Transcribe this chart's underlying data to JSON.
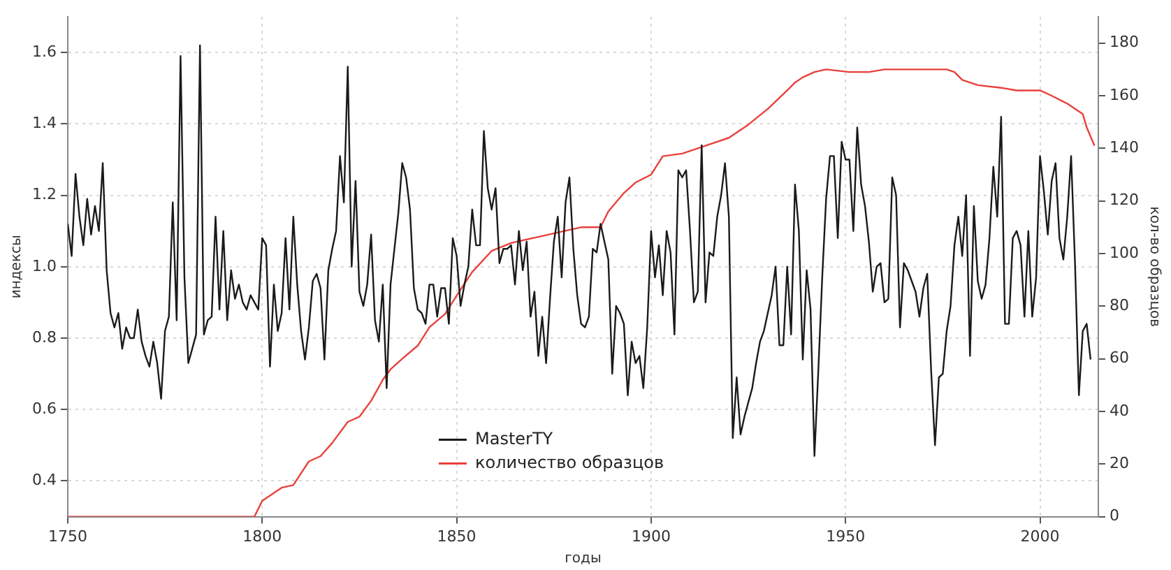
{
  "chart_data": {
    "type": "line",
    "xlabel": "годы",
    "ylabel": "индексы",
    "y2label": "кол-во образцов",
    "xlim": [
      1750,
      2015
    ],
    "xticks": [
      1750,
      1800,
      1850,
      1900,
      1950,
      2000
    ],
    "ylim": [
      0.3,
      1.7
    ],
    "yticks": [
      {
        "value": 0.4,
        "label": "0.4"
      },
      {
        "value": 0.6,
        "label": "0.6"
      },
      {
        "value": 0.8,
        "label": "0.8"
      },
      {
        "value": 1.0,
        "label": "1.0"
      },
      {
        "value": 1.2,
        "label": "1.2"
      },
      {
        "value": 1.4,
        "label": "1.4"
      },
      {
        "value": 1.6,
        "label": "1.6"
      }
    ],
    "y2lim": [
      0,
      190
    ],
    "y2ticks": [
      0,
      20,
      40,
      60,
      80,
      100,
      120,
      140,
      160,
      180
    ],
    "grid": true,
    "legend": "bottom",
    "marker": "none",
    "line_style": "solid",
    "series": [
      {
        "name": "MasterTY",
        "color": "#1a1a1a",
        "x": [
          1750,
          1751,
          1752,
          1753,
          1754,
          1755,
          1756,
          1757,
          1758,
          1759,
          1760,
          1761,
          1762,
          1763,
          1764,
          1765,
          1766,
          1767,
          1768,
          1769,
          1770,
          1771,
          1772,
          1773,
          1774,
          1775,
          1776,
          1777,
          1778,
          1779,
          1780,
          1781,
          1782,
          1783,
          1784,
          1785,
          1786,
          1787,
          1788,
          1789,
          1790,
          1791,
          1792,
          1793,
          1794,
          1795,
          1796,
          1797,
          1798,
          1799,
          1800,
          1801,
          1802,
          1803,
          1804,
          1805,
          1806,
          1807,
          1808,
          1809,
          1810,
          1811,
          1812,
          1813,
          1814,
          1815,
          1816,
          1817,
          1818,
          1819,
          1820,
          1821,
          1822,
          1823,
          1824,
          1825,
          1826,
          1827,
          1828,
          1829,
          1830,
          1831,
          1832,
          1833,
          1834,
          1835,
          1836,
          1837,
          1838,
          1839,
          1840,
          1841,
          1842,
          1843,
          1844,
          1845,
          1846,
          1847,
          1848,
          1849,
          1850,
          1851,
          1852,
          1853,
          1854,
          1855,
          1856,
          1857,
          1858,
          1859,
          1860,
          1861,
          1862,
          1863,
          1864,
          1865,
          1866,
          1867,
          1868,
          1869,
          1870,
          1871,
          1872,
          1873,
          1874,
          1875,
          1876,
          1877,
          1878,
          1879,
          1880,
          1881,
          1882,
          1883,
          1884,
          1885,
          1886,
          1887,
          1888,
          1889,
          1890,
          1891,
          1892,
          1893,
          1894,
          1895,
          1896,
          1897,
          1898,
          1899,
          1900,
          1901,
          1902,
          1903,
          1904,
          1905,
          1906,
          1907,
          1908,
          1909,
          1910,
          1911,
          1912,
          1913,
          1914,
          1915,
          1916,
          1917,
          1918,
          1919,
          1920,
          1921,
          1922,
          1923,
          1924,
          1925,
          1926,
          1927,
          1928,
          1929,
          1930,
          1931,
          1932,
          1933,
          1934,
          1935,
          1936,
          1937,
          1938,
          1939,
          1940,
          1941,
          1942,
          1943,
          1944,
          1945,
          1946,
          1947,
          1948,
          1949,
          1950,
          1951,
          1952,
          1953,
          1954,
          1955,
          1956,
          1957,
          1958,
          1959,
          1960,
          1961,
          1962,
          1963,
          1964,
          1965,
          1966,
          1967,
          1968,
          1969,
          1970,
          1971,
          1972,
          1973,
          1974,
          1975,
          1976,
          1977,
          1978,
          1979,
          1980,
          1981,
          1982,
          1983,
          1984,
          1985,
          1986,
          1987,
          1988,
          1989,
          1990,
          1991,
          1992,
          1993,
          1994,
          1995,
          1996,
          1997,
          1998,
          1999,
          2000,
          2001,
          2002,
          2003,
          2004,
          2005,
          2006,
          2007,
          2008,
          2009,
          2010,
          2011,
          2012,
          2013
        ],
        "values": [
          1.12,
          1.03,
          1.26,
          1.14,
          1.06,
          1.19,
          1.09,
          1.17,
          1.1,
          1.29,
          0.99,
          0.87,
          0.83,
          0.87,
          0.77,
          0.83,
          0.8,
          0.8,
          0.88,
          0.79,
          0.75,
          0.72,
          0.79,
          0.73,
          0.63,
          0.82,
          0.86,
          1.18,
          0.85,
          1.59,
          0.97,
          0.73,
          0.77,
          0.81,
          1.62,
          0.81,
          0.85,
          0.86,
          1.14,
          0.88,
          1.1,
          0.85,
          0.99,
          0.91,
          0.95,
          0.9,
          0.88,
          0.92,
          0.9,
          0.88,
          1.08,
          1.06,
          0.72,
          0.95,
          0.82,
          0.87,
          1.08,
          0.88,
          1.14,
          0.95,
          0.82,
          0.74,
          0.83,
          0.96,
          0.98,
          0.94,
          0.74,
          0.99,
          1.05,
          1.1,
          1.31,
          1.18,
          1.56,
          1.0,
          1.24,
          0.93,
          0.89,
          0.95,
          1.09,
          0.85,
          0.79,
          0.95,
          0.66,
          0.95,
          1.05,
          1.15,
          1.29,
          1.25,
          1.16,
          0.94,
          0.88,
          0.87,
          0.84,
          0.95,
          0.95,
          0.86,
          0.94,
          0.94,
          0.84,
          1.08,
          1.03,
          0.89,
          0.95,
          1.0,
          1.16,
          1.06,
          1.06,
          1.38,
          1.22,
          1.16,
          1.22,
          1.01,
          1.05,
          1.05,
          1.06,
          0.95,
          1.1,
          0.99,
          1.07,
          0.86,
          0.93,
          0.75,
          0.86,
          0.73,
          0.91,
          1.07,
          1.14,
          0.97,
          1.18,
          1.25,
          1.05,
          0.92,
          0.84,
          0.83,
          0.86,
          1.05,
          1.04,
          1.12,
          1.07,
          1.02,
          0.7,
          0.89,
          0.87,
          0.84,
          0.64,
          0.79,
          0.73,
          0.75,
          0.66,
          0.83,
          1.1,
          0.97,
          1.06,
          0.92,
          1.1,
          1.04,
          0.81,
          1.27,
          1.25,
          1.27,
          1.1,
          0.9,
          0.93,
          1.34,
          0.9,
          1.04,
          1.03,
          1.14,
          1.2,
          1.29,
          1.14,
          0.52,
          0.69,
          0.53,
          0.58,
          0.62,
          0.66,
          0.73,
          0.79,
          0.82,
          0.87,
          0.92,
          1.0,
          0.78,
          0.78,
          1.0,
          0.81,
          1.23,
          1.1,
          0.74,
          0.99,
          0.88,
          0.47,
          0.71,
          0.97,
          1.19,
          1.31,
          1.31,
          1.08,
          1.35,
          1.3,
          1.3,
          1.1,
          1.39,
          1.23,
          1.17,
          1.07,
          0.93,
          1.0,
          1.01,
          0.9,
          0.91,
          1.25,
          1.2,
          0.83,
          1.01,
          0.99,
          0.96,
          0.93,
          0.86,
          0.94,
          0.98,
          0.71,
          0.5,
          0.69,
          0.7,
          0.82,
          0.89,
          1.06,
          1.14,
          1.03,
          1.2,
          0.75,
          1.17,
          0.96,
          0.91,
          0.95,
          1.08,
          1.28,
          1.14,
          1.42,
          0.84,
          0.84,
          1.08,
          1.1,
          1.06,
          0.86,
          1.1,
          0.86,
          0.97,
          1.31,
          1.21,
          1.09,
          1.24,
          1.29,
          1.08,
          1.02,
          1.14,
          1.31,
          1.01,
          0.64,
          0.82,
          0.84,
          0.74
        ]
      },
      {
        "name": "количество образцов",
        "color": "#e8413c",
        "axis": "y2",
        "x": [
          1750,
          1798,
          1800,
          1805,
          1808,
          1812,
          1815,
          1818,
          1822,
          1825,
          1828,
          1831,
          1833,
          1836,
          1840,
          1843,
          1847,
          1850,
          1854,
          1859,
          1864,
          1870,
          1876,
          1882,
          1887,
          1889,
          1893,
          1896,
          1900,
          1903,
          1908,
          1914,
          1920,
          1925,
          1930,
          1935,
          1937,
          1939,
          1942,
          1945,
          1951,
          1956,
          1960,
          1976,
          1978,
          1980,
          1984,
          1990,
          1994,
          2000,
          2003,
          2007,
          2011,
          2012,
          2014
        ],
        "values": [
          0,
          0,
          6,
          11,
          12,
          21,
          23,
          28,
          36,
          38,
          44,
          52,
          56,
          60,
          65,
          72,
          77,
          84,
          93,
          101,
          104,
          106,
          108,
          110,
          110,
          116,
          123,
          127,
          130,
          137,
          138,
          141,
          144,
          149,
          155,
          162,
          165,
          167,
          169,
          170,
          169,
          169,
          170,
          170,
          169,
          166,
          164,
          163,
          162,
          162,
          160,
          157,
          153,
          148,
          141
        ]
      }
    ]
  }
}
